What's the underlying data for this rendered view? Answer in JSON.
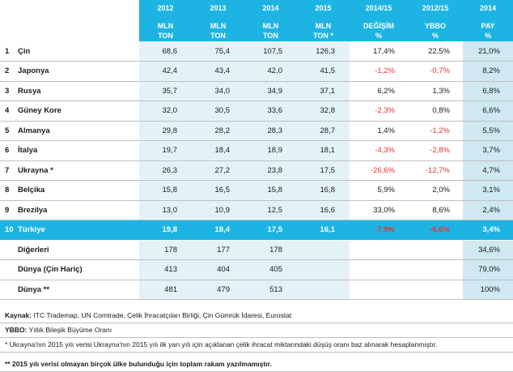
{
  "header": {
    "years": [
      "2012",
      "2013",
      "2014",
      "2015"
    ],
    "unit": "MLN",
    "unit2": "TON",
    "unit2_2015": "TON *",
    "change_label": "2014/15",
    "change_sub": "DEĞİŞİM",
    "change_unit": "%",
    "cagr_label": "2012/15",
    "cagr_sub": "YBBO",
    "cagr_unit": "%",
    "share_label": "2014",
    "share_sub": "PAY",
    "share_unit": "%"
  },
  "rows": [
    {
      "rank": "1",
      "name": "Çin",
      "y2012": "68,6",
      "y2013": "75,4",
      "y2014": "107,5",
      "y2015": "126,3",
      "chg": "17,4%",
      "cagr": "22,5%",
      "share": "21,0%",
      "chg_neg": false,
      "cagr_neg": false
    },
    {
      "rank": "2",
      "name": "Japonya",
      "y2012": "42,4",
      "y2013": "43,4",
      "y2014": "42,0",
      "y2015": "41,5",
      "chg": "-1,2%",
      "cagr": "-0,7%",
      "share": "8,2%",
      "chg_neg": true,
      "cagr_neg": true
    },
    {
      "rank": "3",
      "name": "Rusya",
      "y2012": "35,7",
      "y2013": "34,0",
      "y2014": "34,9",
      "y2015": "37,1",
      "chg": "6,2%",
      "cagr": "1,3%",
      "share": "6,8%",
      "chg_neg": false,
      "cagr_neg": false
    },
    {
      "rank": "4",
      "name": "Güney Kore",
      "y2012": "32,0",
      "y2013": "30,5",
      "y2014": "33,6",
      "y2015": "32,8",
      "chg": "-2,3%",
      "cagr": "0,8%",
      "share": "6,6%",
      "chg_neg": true,
      "cagr_neg": false
    },
    {
      "rank": "5",
      "name": "Almanya",
      "y2012": "29,8",
      "y2013": "28,2",
      "y2014": "28,3",
      "y2015": "28,7",
      "chg": "1,4%",
      "cagr": "-1,2%",
      "share": "5,5%",
      "chg_neg": false,
      "cagr_neg": true
    },
    {
      "rank": "6",
      "name": "İtalya",
      "y2012": "19,7",
      "y2013": "18,4",
      "y2014": "18,9",
      "y2015": "18,1",
      "chg": "-4,3%",
      "cagr": "-2,8%",
      "share": "3,7%",
      "chg_neg": true,
      "cagr_neg": true
    },
    {
      "rank": "7",
      "name": "Ukrayna *",
      "y2012": "26,3",
      "y2013": "27,2",
      "y2014": "23,8",
      "y2015": "17,5",
      "chg": "-26,6%",
      "cagr": "-12,7%",
      "share": "4,7%",
      "chg_neg": true,
      "cagr_neg": true
    },
    {
      "rank": "8",
      "name": "Belçika",
      "y2012": "15,8",
      "y2013": "16,5",
      "y2014": "15,8",
      "y2015": "16,8",
      "chg": "5,9%",
      "cagr": "2,0%",
      "share": "3,1%",
      "chg_neg": false,
      "cagr_neg": false
    },
    {
      "rank": "9",
      "name": "Brezilya",
      "y2012": "13,0",
      "y2013": "10,9",
      "y2014": "12,5",
      "y2015": "16,6",
      "chg": "33,0%",
      "cagr": "8,6%",
      "share": "2,4%",
      "chg_neg": false,
      "cagr_neg": false
    },
    {
      "rank": "10",
      "name": "Türkiye",
      "y2012": "19,8",
      "y2013": "18,4",
      "y2014": "17,5",
      "y2015": "16,1",
      "chg": "-7,9%",
      "cagr": "-6,6%",
      "share": "3,4%",
      "chg_neg": true,
      "cagr_neg": true,
      "highlight": true
    },
    {
      "rank": "",
      "name": "Diğerleri",
      "y2012": "178",
      "y2013": "177",
      "y2014": "178",
      "y2015": "",
      "chg": "",
      "cagr": "",
      "share": "34,6%",
      "chg_neg": false,
      "cagr_neg": false
    },
    {
      "rank": "",
      "name": "Dünya (Çin Hariç)",
      "y2012": "413",
      "y2013": "404",
      "y2014": "405",
      "y2015": "",
      "chg": "",
      "cagr": "",
      "share": "79,0%",
      "chg_neg": false,
      "cagr_neg": false
    },
    {
      "rank": "",
      "name": "Dünya **",
      "y2012": "481",
      "y2013": "479",
      "y2014": "513",
      "y2015": "",
      "chg": "",
      "cagr": "",
      "share": "100%",
      "chg_neg": false,
      "cagr_neg": false
    }
  ],
  "notes": {
    "source_label": "Kaynak:",
    "source_text": " ITC Trademap, UN Comtrade, Çelik İhracatçıları Birliği, Çin Gümrük İdaresi, Eurostat",
    "cagr_label": "YBBO:",
    "cagr_text": " Yıllık Bileşik Büyüme Oranı",
    "ukraine_note": "* Ukrayna'nın 2015 yılı verisi Ukrayna'nın 2015 yılı ilk yarı yılı için açıklanan çelik ihracat miktarındaki düşüş oranı baz alınarak hesaplanmıştır.",
    "world_note": "** 2015 yılı verisi olmayan birçok ülke bulunduğu için toplam rakam yazılmamıştır."
  }
}
